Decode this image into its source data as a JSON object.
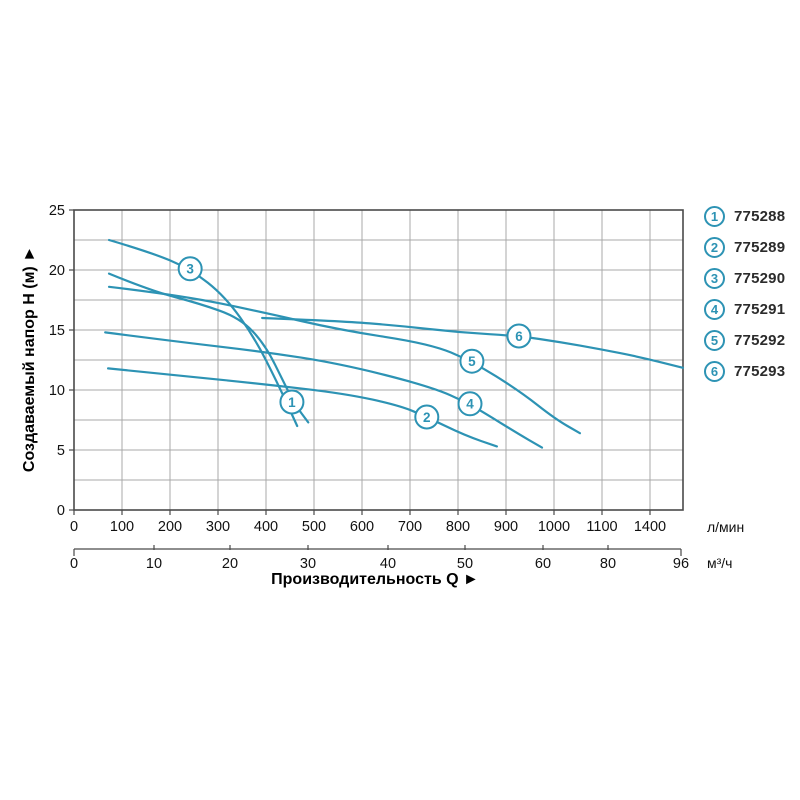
{
  "titles": {
    "y": "Создаваемый напор H (м) ►",
    "x": "Производительность Q ►"
  },
  "y_axis": {
    "ticks": [
      "0",
      "5",
      "10",
      "15",
      "20",
      "25"
    ],
    "minor_step": 2.5,
    "range": [
      0,
      25
    ]
  },
  "x_axis_primary": {
    "unit": "л/мин",
    "ticks": [
      "0",
      "100",
      "200",
      "300",
      "400",
      "500",
      "600",
      "700",
      "800",
      "900",
      "1000",
      "1100",
      "1400"
    ]
  },
  "x_axis_secondary": {
    "unit": "м³/ч",
    "ticks": [
      "0",
      "10",
      "20",
      "30",
      "40",
      "50",
      "60",
      "80",
      "96"
    ]
  },
  "legend": {
    "items": [
      {
        "num": "1",
        "code": "775288"
      },
      {
        "num": "2",
        "code": "775289"
      },
      {
        "num": "3",
        "code": "775290"
      },
      {
        "num": "4",
        "code": "775291"
      },
      {
        "num": "5",
        "code": "775292"
      },
      {
        "num": "6",
        "code": "775293"
      }
    ]
  },
  "colors": {
    "curve": "#2d93b4",
    "grid": "#a9a9a9",
    "border": "#4a4a4a",
    "text": "#111111",
    "legend_text": "#2b2b2b"
  },
  "chart_data": {
    "type": "line",
    "x_unit_primary": "л/мин",
    "x_unit_secondary": "м³/ч",
    "y_unit": "м",
    "xlim_lmin": [
      0,
      1600
    ],
    "ylim_m": [
      0,
      25
    ],
    "grid": true,
    "legend_position": "right",
    "series": [
      {
        "num": "1",
        "name": "775288",
        "points": [
          [
            73,
            19.7
          ],
          [
            158,
            18.3
          ],
          [
            262,
            17.2
          ],
          [
            346,
            16.0
          ],
          [
            398,
            13.8
          ],
          [
            440,
            10.4
          ],
          [
            460,
            8.8
          ],
          [
            488,
            7.3
          ]
        ],
        "label_at": [
          454,
          9.0
        ]
      },
      {
        "num": "2",
        "name": "775289",
        "points": [
          [
            71,
            11.8
          ],
          [
            221,
            11.2
          ],
          [
            392,
            10.5
          ],
          [
            565,
            9.7
          ],
          [
            679,
            8.7
          ],
          [
            735,
            7.75
          ],
          [
            815,
            6.2
          ],
          [
            881,
            5.3
          ]
        ],
        "label_at": [
          735,
          7.75
        ]
      },
      {
        "num": "3",
        "name": "775290",
        "points": [
          [
            73,
            22.5
          ],
          [
            158,
            21.5
          ],
          [
            242,
            20.1
          ],
          [
            315,
            17.8
          ],
          [
            377,
            14.3
          ],
          [
            425,
            10.5
          ],
          [
            465,
            7.0
          ]
        ],
        "label_at": [
          242,
          20.1
        ]
      },
      {
        "num": "4",
        "name": "775291",
        "points": [
          [
            65,
            14.8
          ],
          [
            221,
            14.0
          ],
          [
            392,
            13.2
          ],
          [
            554,
            12.2
          ],
          [
            742,
            10.3
          ],
          [
            825,
            8.85
          ],
          [
            919,
            6.5
          ],
          [
            975,
            5.2
          ]
        ],
        "label_at": [
          825,
          8.85
        ]
      },
      {
        "num": "5",
        "name": "775292",
        "points": [
          [
            73,
            18.6
          ],
          [
            221,
            17.9
          ],
          [
            392,
            16.5
          ],
          [
            554,
            15.0
          ],
          [
            742,
            13.85
          ],
          [
            829,
            12.4
          ],
          [
            929,
            9.9
          ],
          [
            1002,
            7.6
          ],
          [
            1054,
            6.4
          ]
        ],
        "label_at": [
          829,
          12.4
        ]
      },
      {
        "num": "6",
        "name": "775293",
        "points": [
          [
            392,
            16.0
          ],
          [
            554,
            15.75
          ],
          [
            679,
            15.35
          ],
          [
            804,
            14.8
          ],
          [
            927,
            14.5
          ],
          [
            1012,
            14.0
          ],
          [
            1096,
            13.4
          ],
          [
            1337,
            12.75
          ],
          [
            1606,
            11.85
          ]
        ],
        "label_at": [
          927,
          14.5
        ]
      }
    ]
  }
}
